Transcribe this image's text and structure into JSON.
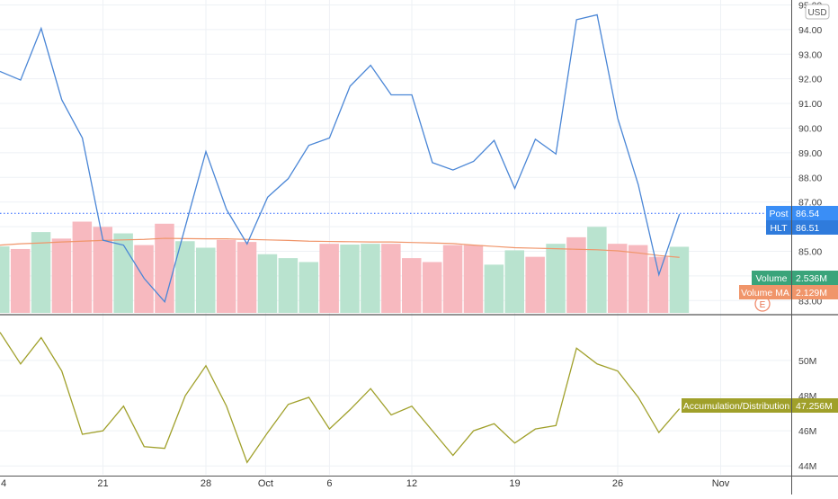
{
  "header": {
    "currency": "USD"
  },
  "chart_data": [
    {
      "type": "line",
      "name": "price",
      "x": [
        0,
        1,
        2,
        3,
        4,
        5,
        6,
        7,
        8,
        9,
        10,
        11,
        12,
        13,
        14,
        15,
        16,
        17,
        18,
        19,
        20,
        21,
        22,
        23,
        24,
        25,
        26,
        27,
        28,
        29,
        30,
        31,
        32,
        33
      ],
      "values": [
        92.3,
        91.95,
        94.05,
        91.15,
        89.6,
        85.45,
        85.25,
        83.9,
        82.95,
        86.0,
        89.05,
        86.7,
        85.3,
        87.2,
        87.95,
        89.3,
        89.6,
        91.7,
        92.55,
        91.35,
        91.35,
        88.6,
        88.3,
        88.65,
        89.5,
        87.55,
        89.55,
        88.95,
        94.4,
        94.6,
        90.4,
        87.7,
        84.05,
        86.51
      ],
      "ylim": [
        82.5,
        95.2
      ],
      "y_ticks": [
        "83.00",
        "84.00",
        "85.00",
        "86.00",
        "87.00",
        "88.00",
        "89.00",
        "90.00",
        "91.00",
        "92.00",
        "93.00",
        "94.00",
        "95.00"
      ],
      "last_price_line": 86.54,
      "labels": [
        {
          "name": "Post",
          "value": "86.54"
        },
        {
          "name": "HLT",
          "value": "86.51"
        }
      ],
      "color": "#4a86d6"
    },
    {
      "type": "bar",
      "name": "volume",
      "x": [
        0,
        1,
        2,
        3,
        4,
        5,
        6,
        7,
        8,
        9,
        10,
        11,
        12,
        13,
        14,
        15,
        16,
        17,
        18,
        19,
        20,
        21,
        22,
        23,
        24,
        25,
        26,
        27,
        28,
        29,
        30,
        31,
        32,
        33
      ],
      "values": [
        2.55,
        2.45,
        3.1,
        2.85,
        3.5,
        3.3,
        3.05,
        2.6,
        3.42,
        2.75,
        2.5,
        2.8,
        2.72,
        2.25,
        2.1,
        1.95,
        2.65,
        2.62,
        2.65,
        2.65,
        2.1,
        1.95,
        2.6,
        2.6,
        1.85,
        2.4,
        2.15,
        2.65,
        2.9,
        3.3,
        2.65,
        2.6,
        2.15,
        2.536
      ],
      "up": [
        true,
        false,
        true,
        false,
        false,
        false,
        true,
        false,
        false,
        true,
        true,
        false,
        false,
        true,
        true,
        true,
        false,
        true,
        true,
        false,
        false,
        false,
        false,
        false,
        true,
        true,
        false,
        true,
        false,
        true,
        false,
        false,
        false,
        true
      ],
      "ma_values": [
        2.6,
        2.65,
        2.68,
        2.72,
        2.75,
        2.78,
        2.8,
        2.82,
        2.86,
        2.85,
        2.84,
        2.84,
        2.82,
        2.8,
        2.78,
        2.75,
        2.74,
        2.73,
        2.72,
        2.72,
        2.7,
        2.68,
        2.66,
        2.6,
        2.55,
        2.5,
        2.48,
        2.46,
        2.44,
        2.42,
        2.38,
        2.3,
        2.2,
        2.129
      ],
      "ymax": 12.0,
      "labels": [
        {
          "name": "Volume",
          "value": "2.536M"
        },
        {
          "name": "Volume MA",
          "value": "2.129M"
        }
      ],
      "up_color": "#b9e3cf",
      "down_color": "#f7b9bf",
      "ma_color": "#f0956a"
    },
    {
      "type": "line",
      "name": "Accumulation/Distribution",
      "x": [
        0,
        1,
        2,
        3,
        4,
        5,
        6,
        7,
        8,
        9,
        10,
        11,
        12,
        13,
        14,
        15,
        16,
        17,
        18,
        19,
        20,
        21,
        22,
        23,
        24,
        25,
        26,
        27,
        28,
        29,
        30,
        31,
        32,
        33
      ],
      "values": [
        51.6,
        49.8,
        51.3,
        49.4,
        45.8,
        46.0,
        47.4,
        45.1,
        45.0,
        48.0,
        49.7,
        47.4,
        44.2,
        45.9,
        47.5,
        47.9,
        46.1,
        47.2,
        48.4,
        46.9,
        47.4,
        46.0,
        44.6,
        46.0,
        46.4,
        45.3,
        46.1,
        46.3,
        50.7,
        49.8,
        49.4,
        47.9,
        45.9,
        47.256
      ],
      "ylim": [
        43.5,
        52.5
      ],
      "y_ticks": [
        "44M",
        "46M",
        "48M",
        "50M"
      ],
      "last_label": "47.256M",
      "legend": "Accumulation/Distribution",
      "color": "#a0a02a"
    }
  ],
  "x_axis": {
    "ticks": [
      {
        "label": "4",
        "x": -0.05
      },
      {
        "label": "21",
        "x": 5.0
      },
      {
        "label": "28",
        "x": 10.0
      },
      {
        "label": "Oct",
        "x": 12.9
      },
      {
        "label": "6",
        "x": 16.0
      },
      {
        "label": "12",
        "x": 20.0
      },
      {
        "label": "19",
        "x": 25.0
      },
      {
        "label": "26",
        "x": 30.0
      },
      {
        "label": "Nov",
        "x": 35.0
      }
    ]
  },
  "earnings_marker": {
    "label": "E"
  }
}
